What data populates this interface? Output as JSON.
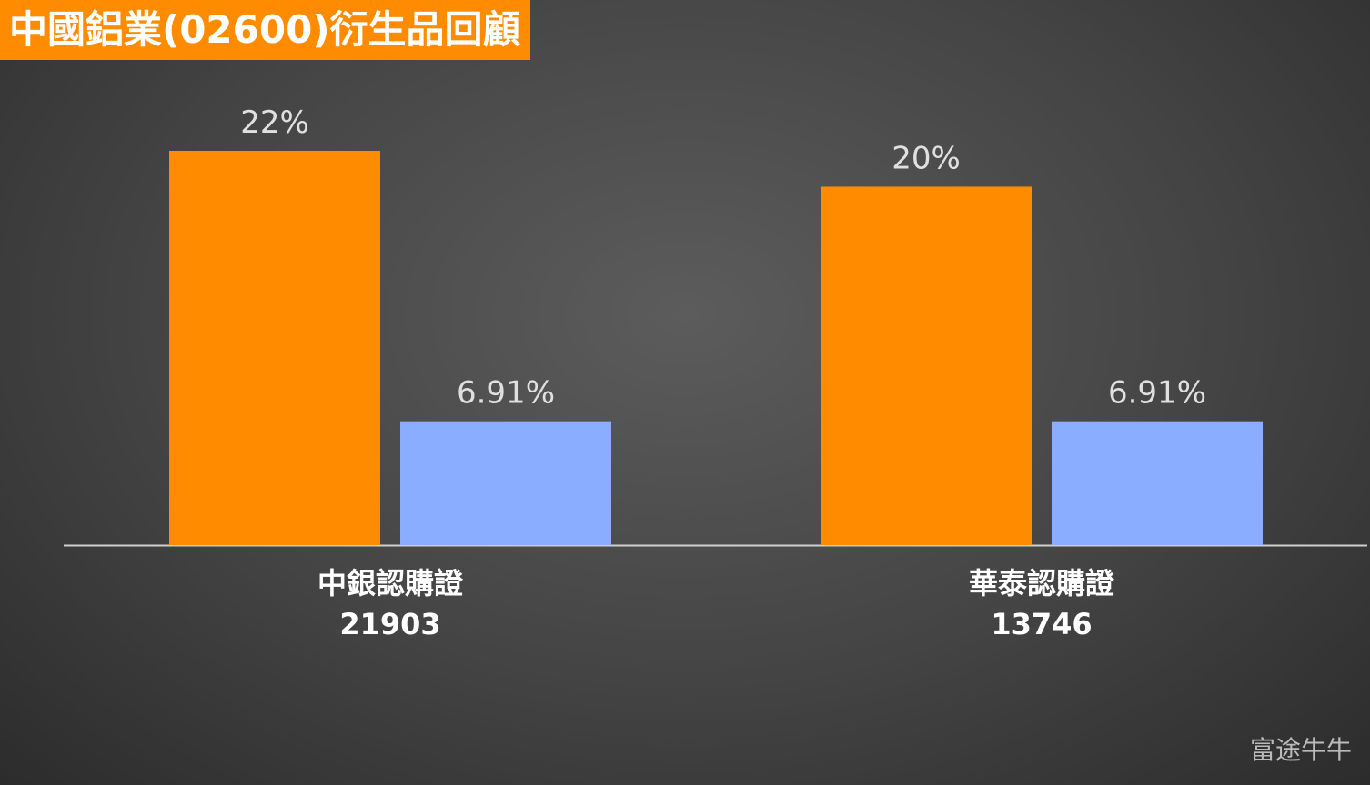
{
  "chart_data": {
    "type": "bar",
    "title": "中國鋁業(02600)衍生品回顧",
    "categories": [
      "中銀認購證\n21903",
      "華泰認購證\n13746"
    ],
    "series": [
      {
        "color": "#ff8c00",
        "values": [
          22,
          20
        ],
        "value_labels": [
          "22%",
          "20%"
        ]
      },
      {
        "color": "#8aadff",
        "values": [
          6.91,
          6.91
        ],
        "value_labels": [
          "6.91%",
          "6.91%"
        ]
      }
    ],
    "ylim": [
      0,
      22
    ],
    "watermark": "富途牛牛"
  }
}
